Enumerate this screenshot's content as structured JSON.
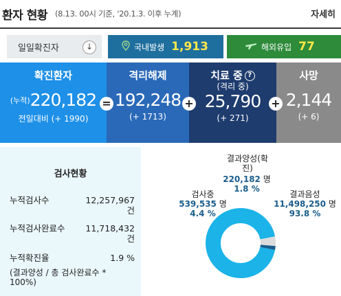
{
  "header": {
    "title": "환자 현황",
    "subtitle": "(8.13. 00시 기준, '20.1.3. 이후 누계)",
    "detail_link": "자세히"
  },
  "daily": {
    "label": "일일확진자",
    "domestic_label": "국내발생",
    "domestic_value": "1,913",
    "overseas_label": "해외유입",
    "overseas_value": "77"
  },
  "stats": {
    "confirmed": {
      "title": "확진환자",
      "prefix": "(누적)",
      "value": "220,182",
      "delta": "전일대비 (+ 1990)"
    },
    "released": {
      "title": "격리해제",
      "value": "192,248",
      "delta": "(+ 1713)"
    },
    "treating": {
      "title": "치료 중",
      "subtitle": "(격리 중)",
      "value": "25,790",
      "delta": "(+ 271)"
    },
    "deaths": {
      "title": "사망",
      "value": "2,144",
      "delta": "(+ 6)"
    },
    "ops": {
      "eq": "=",
      "plus1": "+",
      "plus2": "+"
    }
  },
  "tests": {
    "title": "검사현황",
    "rows": [
      {
        "label": "누적검사수",
        "value": "12,257,967",
        "unit": "건"
      },
      {
        "label": "누적검사완료수",
        "value": "11,718,432",
        "unit": "건"
      },
      {
        "label": "누적확진율",
        "value": "1.9 %"
      }
    ],
    "note": "(결과양성 / 총 검사완료수 * 100%)"
  },
  "pie": {
    "positive": {
      "label": "결과양성(확진)",
      "value": "220,182",
      "unit": "명",
      "percent": "1.8 %"
    },
    "testing": {
      "label": "검사중",
      "value": "539,535",
      "unit": "명",
      "percent": "4.4 %"
    },
    "negative": {
      "label": "결과음성",
      "value": "11,498,250",
      "unit": "명",
      "percent": "93.8 %"
    },
    "colors": {
      "negative": "#1bb3e8",
      "testing": "#dcdcdc",
      "positive": "#1a5d8c"
    }
  }
}
